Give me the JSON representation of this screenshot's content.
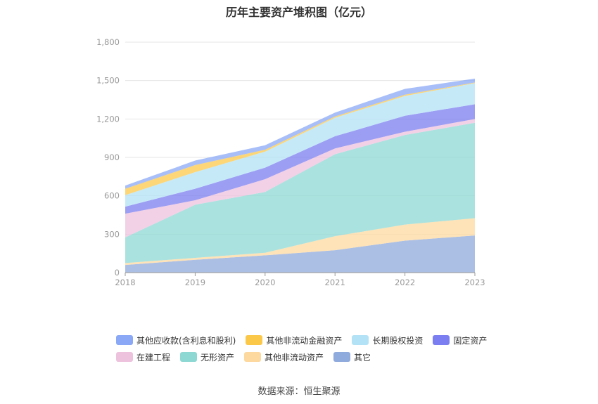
{
  "title": "历年主要资产堆积图（亿元）",
  "source": "数据来源：恒生聚源",
  "chart_data": {
    "type": "area",
    "stacked": true,
    "x": [
      "2018",
      "2019",
      "2020",
      "2021",
      "2022",
      "2023"
    ],
    "ylim": [
      0,
      1800
    ],
    "yticks": [
      "0",
      "300",
      "600",
      "900",
      "1,200",
      "1,500",
      "1,800"
    ],
    "grid": true,
    "legend_position": "bottom",
    "series": [
      {
        "name": "其它",
        "color": "#8faadc",
        "values": [
          60,
          100,
          135,
          175,
          250,
          290
        ]
      },
      {
        "name": "其他非流动资产",
        "color": "#fdd9a0",
        "values": [
          15,
          15,
          20,
          110,
          125,
          135
        ]
      },
      {
        "name": "无形资产",
        "color": "#8ed8d4",
        "values": [
          200,
          415,
          475,
          640,
          700,
          745
        ]
      },
      {
        "name": "在建工程",
        "color": "#edc2dd",
        "values": [
          185,
          35,
          100,
          45,
          25,
          30
        ]
      },
      {
        "name": "固定资产",
        "color": "#7b7ef0",
        "values": [
          55,
          90,
          90,
          95,
          125,
          115
        ]
      },
      {
        "name": "长期股权投资",
        "color": "#b3e2f6",
        "values": [
          90,
          130,
          125,
          145,
          155,
          165
        ]
      },
      {
        "name": "其他非流动金融资产",
        "color": "#fbc84a",
        "values": [
          50,
          55,
          15,
          10,
          10,
          5
        ]
      },
      {
        "name": "其他应收款(含利息和股利)",
        "color": "#8aa8f6",
        "values": [
          25,
          35,
          35,
          30,
          45,
          30
        ]
      }
    ],
    "legend_order": [
      [
        "其他应收款(含利息和股利)",
        "其他非流动金融资产",
        "长期股权投资",
        "固定资产"
      ],
      [
        "在建工程",
        "无形资产",
        "其他非流动资产",
        "其它"
      ]
    ]
  }
}
